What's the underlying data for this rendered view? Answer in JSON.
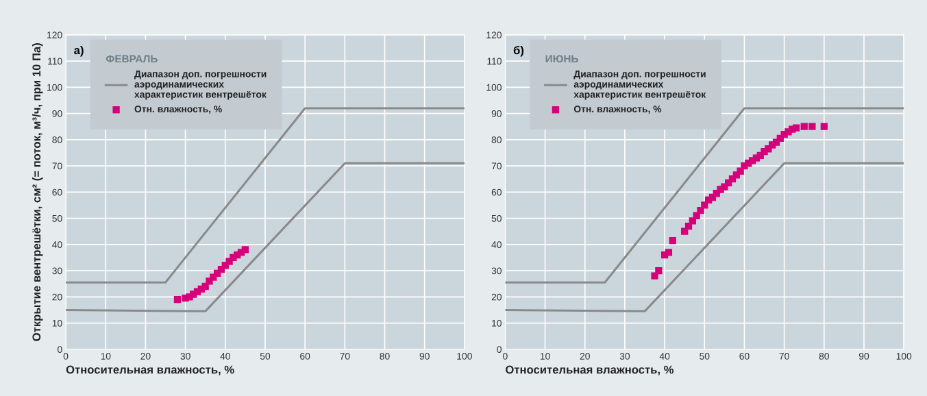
{
  "chart_data": [
    {
      "type": "line",
      "legend_title": "ФЕВРАЛЬ",
      "xlabel": "Относительная влажность, %",
      "ylabel": "Открытие вентрешётки, см² (= поток, м³/ч, при 10 Па)",
      "annotations": [
        "а)"
      ],
      "xlim": [
        0,
        100
      ],
      "ylim": [
        0,
        120
      ],
      "xticks": [
        0,
        10,
        20,
        30,
        40,
        50,
        60,
        70,
        80,
        90,
        100
      ],
      "yticks": [
        0,
        10,
        20,
        30,
        40,
        50,
        60,
        70,
        80,
        90,
        100,
        110,
        120
      ],
      "grid": true,
      "legend": "top left",
      "series": [
        {
          "name": "Диапазон доп. погрешности аэродинамических характеристик вентрешёток",
          "color": "#8a8a8a",
          "x": [
            0,
            25,
            60,
            100
          ],
          "values": [
            25.5,
            25.5,
            92,
            92
          ]
        },
        {
          "color": "#8a8a8a",
          "x": [
            0,
            35,
            70,
            100
          ],
          "values": [
            15,
            14.5,
            71,
            71
          ]
        },
        {
          "type": "scatter",
          "marker": "square",
          "name": "Отн. влажность, %",
          "color": "#d6007a",
          "x": [
            28,
            30,
            31,
            32,
            33,
            34,
            35,
            36,
            37,
            38,
            39,
            40,
            41,
            42,
            43,
            44,
            45
          ],
          "values": [
            19,
            19.5,
            20,
            21,
            22,
            23,
            24,
            26,
            27.5,
            29,
            30.5,
            32,
            33.5,
            35,
            36,
            37,
            38
          ]
        }
      ]
    },
    {
      "type": "line",
      "legend_title": "ИЮНЬ",
      "xlabel": "Относительная влажность, %",
      "annotations": [
        "б)"
      ],
      "xlim": [
        0,
        100
      ],
      "ylim": [
        0,
        120
      ],
      "xticks": [
        0,
        10,
        20,
        30,
        40,
        50,
        60,
        70,
        80,
        90,
        100
      ],
      "yticks": [
        0,
        10,
        20,
        30,
        40,
        50,
        60,
        70,
        80,
        90,
        100,
        110,
        120
      ],
      "grid": true,
      "legend": "top left",
      "series": [
        {
          "name": "Диапазон доп. погрешности аэродинамических характеристик вентрешёток",
          "color": "#8a8a8a",
          "x": [
            0,
            25,
            60,
            100
          ],
          "values": [
            25.5,
            25.5,
            92,
            92
          ]
        },
        {
          "color": "#8a8a8a",
          "x": [
            0,
            35,
            70,
            100
          ],
          "values": [
            15,
            14.5,
            71,
            71
          ]
        },
        {
          "type": "scatter",
          "marker": "square",
          "name": "Отн. влажность, %",
          "color": "#d6007a",
          "x": [
            37.5,
            38.5,
            40,
            41,
            42,
            45,
            46,
            47,
            48,
            49,
            50,
            51,
            52,
            53,
            54,
            55,
            56,
            57,
            58,
            59,
            60,
            61,
            62,
            63,
            64,
            65,
            66,
            67,
            68,
            69,
            70,
            71,
            72,
            73,
            75,
            77,
            80
          ],
          "values": [
            28,
            30,
            36,
            37,
            41.5,
            45,
            47,
            49,
            51,
            53,
            55,
            57,
            58,
            59.5,
            61,
            62,
            63.5,
            65,
            66.5,
            68,
            70,
            71,
            72,
            73,
            74,
            75.5,
            76.5,
            78,
            79,
            80.5,
            82,
            83,
            84,
            84.5,
            85,
            85,
            85
          ]
        }
      ]
    }
  ]
}
